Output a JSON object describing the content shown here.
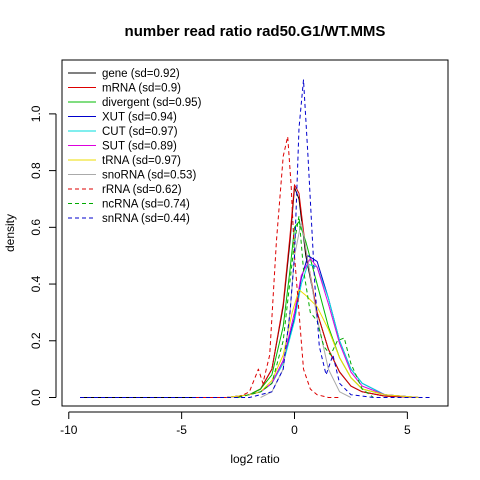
{
  "chart_data": {
    "type": "line",
    "title": "number read ratio rad50.G1/WT.MMS",
    "xlabel": "log2 ratio",
    "ylabel": "density",
    "xlim": [
      -10.3,
      6.8
    ],
    "ylim": [
      -0.03,
      1.19
    ],
    "xticks": [
      -10,
      -5,
      0,
      5
    ],
    "yticks": [
      0.0,
      0.2,
      0.4,
      0.6,
      0.8,
      1.0
    ],
    "legend_position": "top-left",
    "grid": false,
    "series": [
      {
        "name": "gene (sd=0.92)",
        "color": "#000000",
        "dashed": false,
        "x": [
          -9.5,
          -4.5,
          -3.0,
          -2.0,
          -1.5,
          -1.0,
          -0.5,
          -0.2,
          0.0,
          0.2,
          0.5,
          1.0,
          1.5,
          2.0,
          2.5,
          3.0,
          4.0,
          5.5
        ],
        "y": [
          0.0,
          0.0,
          0.0,
          0.01,
          0.03,
          0.1,
          0.32,
          0.55,
          0.74,
          0.7,
          0.5,
          0.3,
          0.17,
          0.09,
          0.04,
          0.02,
          0.005,
          0.0
        ]
      },
      {
        "name": "mRNA (sd=0.9)",
        "color": "#dd0000",
        "dashed": false,
        "x": [
          -4.5,
          -3.0,
          -2.0,
          -1.5,
          -1.0,
          -0.5,
          -0.2,
          0.0,
          0.2,
          0.5,
          1.0,
          1.5,
          2.0,
          2.5,
          3.0,
          4.0,
          5.5
        ],
        "y": [
          0.0,
          0.0,
          0.01,
          0.03,
          0.1,
          0.33,
          0.57,
          0.75,
          0.72,
          0.52,
          0.3,
          0.17,
          0.09,
          0.04,
          0.02,
          0.005,
          0.0
        ]
      },
      {
        "name": "divergent (sd=0.95)",
        "color": "#00bb00",
        "dashed": false,
        "x": [
          -3.0,
          -2.0,
          -1.5,
          -1.0,
          -0.5,
          -0.2,
          0.0,
          0.2,
          0.5,
          1.0,
          1.5,
          2.0,
          2.5,
          3.0,
          4.0,
          5.5
        ],
        "y": [
          0.0,
          0.01,
          0.03,
          0.08,
          0.25,
          0.45,
          0.6,
          0.62,
          0.55,
          0.4,
          0.25,
          0.14,
          0.07,
          0.03,
          0.01,
          0.0
        ]
      },
      {
        "name": "XUT (sd=0.94)",
        "color": "#0000cc",
        "dashed": false,
        "x": [
          -3.0,
          -2.0,
          -1.5,
          -1.0,
          -0.5,
          0.0,
          0.3,
          0.6,
          1.0,
          1.5,
          2.0,
          2.5,
          3.0,
          4.0,
          5.5
        ],
        "y": [
          0.0,
          0.01,
          0.02,
          0.05,
          0.13,
          0.28,
          0.42,
          0.5,
          0.48,
          0.35,
          0.2,
          0.1,
          0.05,
          0.01,
          0.0
        ]
      },
      {
        "name": "CUT (sd=0.97)",
        "color": "#00dddd",
        "dashed": false,
        "x": [
          -3.0,
          -2.0,
          -1.5,
          -1.0,
          -0.5,
          0.0,
          0.3,
          0.6,
          1.0,
          1.5,
          2.0,
          2.5,
          3.0,
          4.0,
          5.5
        ],
        "y": [
          0.0,
          0.01,
          0.02,
          0.05,
          0.12,
          0.27,
          0.4,
          0.47,
          0.46,
          0.35,
          0.2,
          0.1,
          0.05,
          0.01,
          0.0
        ]
      },
      {
        "name": "SUT (sd=0.89)",
        "color": "#dd00dd",
        "dashed": false,
        "x": [
          -3.0,
          -2.0,
          -1.5,
          -1.0,
          -0.5,
          0.0,
          0.3,
          0.7,
          1.0,
          1.5,
          2.0,
          2.5,
          3.0,
          4.0,
          5.5
        ],
        "y": [
          0.0,
          0.01,
          0.02,
          0.05,
          0.13,
          0.3,
          0.43,
          0.49,
          0.46,
          0.33,
          0.19,
          0.09,
          0.04,
          0.01,
          0.0
        ]
      },
      {
        "name": "tRNA (sd=0.97)",
        "color": "#eedd00",
        "dashed": false,
        "x": [
          -3.0,
          -2.0,
          -1.5,
          -1.0,
          -0.5,
          -0.1,
          0.2,
          0.5,
          1.0,
          1.5,
          2.0,
          2.5,
          3.0,
          4.0,
          5.5
        ],
        "y": [
          0.0,
          0.01,
          0.02,
          0.06,
          0.15,
          0.3,
          0.38,
          0.36,
          0.32,
          0.24,
          0.14,
          0.07,
          0.03,
          0.01,
          0.0
        ]
      },
      {
        "name": "snoRNA (sd=0.53)",
        "color": "#aaaaaa",
        "dashed": false,
        "x": [
          -1.5,
          -1.0,
          -0.5,
          -0.2,
          0.0,
          0.3,
          0.6,
          1.0,
          1.5,
          2.0,
          2.5
        ],
        "y": [
          0.0,
          0.02,
          0.1,
          0.3,
          0.5,
          0.62,
          0.48,
          0.28,
          0.1,
          0.02,
          0.0
        ]
      },
      {
        "name": "rRNA (sd=0.62)",
        "color": "#dd0000",
        "dashed": true,
        "x": [
          -2.5,
          -2.0,
          -1.6,
          -1.4,
          -1.1,
          -0.8,
          -0.5,
          -0.3,
          -0.15,
          0.0,
          0.2,
          0.4,
          0.7,
          1.0,
          1.5,
          2.0
        ],
        "y": [
          0.0,
          0.02,
          0.1,
          0.05,
          0.15,
          0.55,
          0.85,
          0.92,
          0.75,
          0.5,
          0.3,
          0.1,
          0.03,
          0.01,
          0.0,
          0.0
        ]
      },
      {
        "name": "ncRNA (sd=0.74)",
        "color": "#00aa00",
        "dashed": true,
        "x": [
          -2.5,
          -1.5,
          -1.0,
          -0.5,
          0.0,
          0.2,
          0.4,
          0.7,
          1.0,
          1.3,
          1.6,
          1.9,
          2.2,
          2.5,
          3.0,
          3.5
        ],
        "y": [
          0.0,
          0.02,
          0.05,
          0.2,
          0.55,
          0.64,
          0.45,
          0.3,
          0.27,
          0.18,
          0.15,
          0.2,
          0.21,
          0.12,
          0.03,
          0.0
        ]
      },
      {
        "name": "snRNA (sd=0.44)",
        "color": "#0000cc",
        "dashed": true,
        "x": [
          -9.5,
          -3.5,
          -2.0,
          -1.0,
          -0.5,
          -0.2,
          0.0,
          0.2,
          0.4,
          0.6,
          0.9,
          1.1,
          1.4,
          1.7,
          2.0,
          2.5,
          3.5,
          6.0
        ],
        "y": [
          0.0,
          0.0,
          0.0,
          0.02,
          0.1,
          0.3,
          0.5,
          0.95,
          1.12,
          0.85,
          0.4,
          0.18,
          0.08,
          0.15,
          0.05,
          0.01,
          0.0,
          0.0
        ]
      }
    ]
  }
}
